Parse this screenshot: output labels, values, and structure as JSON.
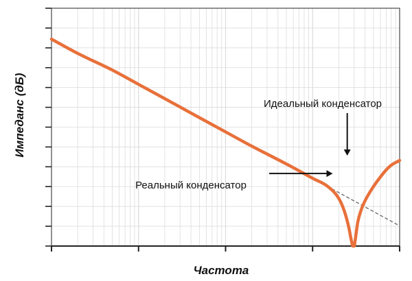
{
  "chart_data": {
    "type": "line",
    "title": "",
    "xlabel": "Частота",
    "ylabel": "Импеданс (дБ)",
    "x_scale": "log",
    "x_ticks_labeled": false,
    "y_ticks_labeled": false,
    "grid": true,
    "legend": "none",
    "colors": {
      "real": "#e8703a",
      "ideal": "#666666",
      "grid": "#dcdcdc",
      "axis": "#222222"
    },
    "xlim": [
      1,
      10000
    ],
    "ylim": [
      0,
      100
    ],
    "series": [
      {
        "key": "real",
        "style": "solid",
        "x": [
          1,
          2,
          5,
          10,
          20,
          50,
          100,
          200,
          500,
          1000,
          1500,
          2000,
          2300,
          2600,
          2800,
          2900,
          3000,
          3100,
          3300,
          3600,
          4000,
          5000,
          6000,
          7000,
          8000,
          10000
        ],
        "y": [
          87,
          81,
          74,
          68,
          62,
          54,
          48,
          42,
          34.5,
          28.5,
          25,
          20,
          15,
          8,
          2,
          0,
          0,
          3,
          10,
          15,
          19,
          25,
          29,
          32,
          34,
          36
        ]
      },
      {
        "key": "ideal",
        "style": "dashed",
        "x": [
          1000,
          10000
        ],
        "y": [
          28.5,
          8.5
        ]
      }
    ],
    "annotations": [
      {
        "key": "ideal",
        "text": "Идеальный конденсатор",
        "target": [
          2500,
          38
        ],
        "arrow": "down"
      },
      {
        "key": "real",
        "text": "Реальный конденсатор",
        "target": [
          1700,
          30.5
        ],
        "arrow": "right"
      }
    ]
  }
}
